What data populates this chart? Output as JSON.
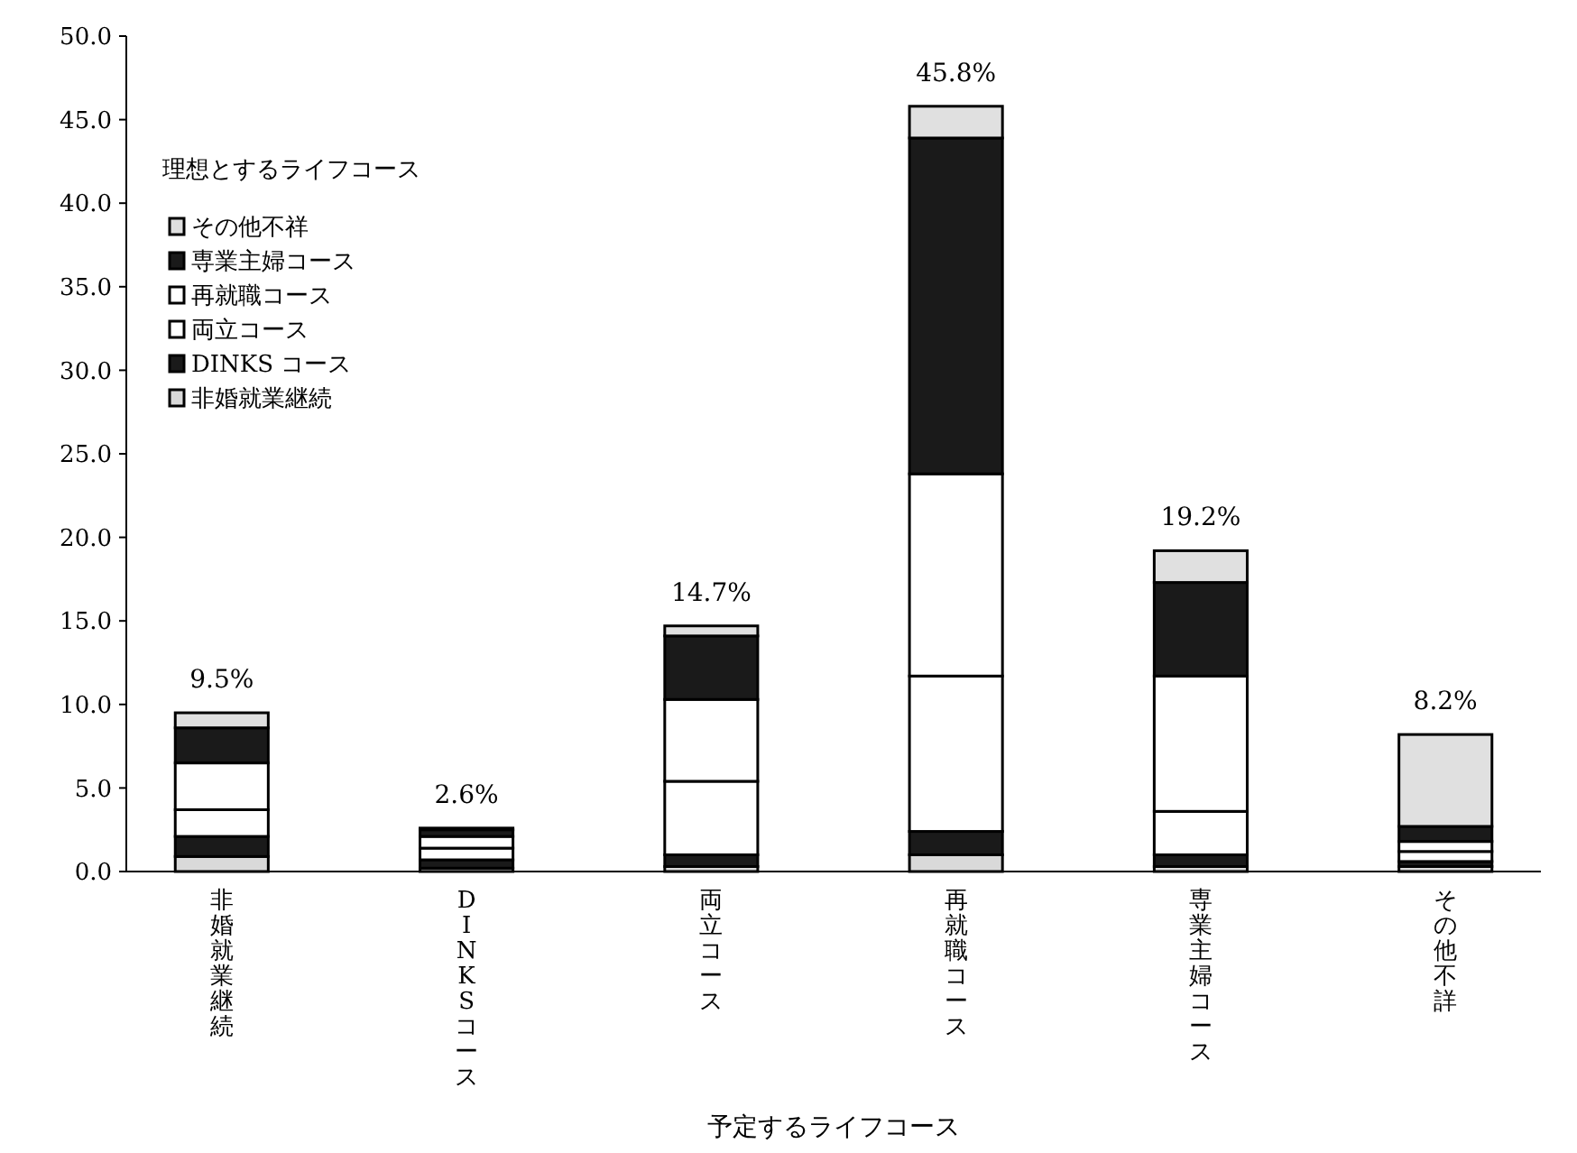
{
  "chart_data": {
    "type": "bar",
    "stacked": true,
    "xlabel": "予定するライフコース",
    "legend_title": "理想とするライフコース",
    "legend": "top left",
    "categories": [
      "非婚就業継続",
      "DINKSコース",
      "両立コース",
      "再就職コース",
      "専業主婦コース",
      "その他不詳"
    ],
    "series": [
      {
        "name": "非婚就業継続",
        "color": "#d9d9d9",
        "values": [
          0.9,
          0.2,
          0.3,
          1.0,
          0.3,
          0.3
        ]
      },
      {
        "name": "DINKS コース",
        "color": "#1a1a1a",
        "values": [
          1.2,
          0.5,
          0.7,
          1.4,
          0.7,
          0.3
        ]
      },
      {
        "name": "両立コース",
        "color": "#ffffff",
        "values": [
          1.6,
          0.7,
          4.4,
          9.3,
          2.6,
          0.6
        ]
      },
      {
        "name": "再就職コース",
        "color": "#ffffff",
        "values": [
          2.8,
          0.7,
          4.9,
          12.1,
          8.1,
          0.6
        ]
      },
      {
        "name": "専業主婦コース",
        "color": "#1a1a1a",
        "values": [
          2.1,
          0.4,
          3.8,
          20.1,
          5.6,
          0.9
        ]
      },
      {
        "name": "その他不祥",
        "color": "#e0e0e0",
        "values": [
          0.9,
          0.1,
          0.6,
          1.9,
          1.9,
          5.5
        ]
      }
    ],
    "totals": [
      "9.5%",
      "2.6%",
      "14.7%",
      "45.8%",
      "19.2%",
      "8.2%"
    ],
    "ylim": [
      0,
      50
    ],
    "yticks": [
      {
        "value": 0,
        "label": "0.0"
      },
      {
        "value": 5,
        "label": "5.0"
      },
      {
        "value": 10,
        "label": "10.0"
      },
      {
        "value": 15,
        "label": "15.0"
      },
      {
        "value": 20,
        "label": "20.0"
      },
      {
        "value": 25,
        "label": "25.0"
      },
      {
        "value": 30,
        "label": "30.0"
      },
      {
        "value": 35,
        "label": "35.0"
      },
      {
        "value": 40,
        "label": "40.0"
      },
      {
        "value": 45,
        "label": "45.0"
      },
      {
        "value": 50,
        "label": "50.0"
      }
    ]
  }
}
